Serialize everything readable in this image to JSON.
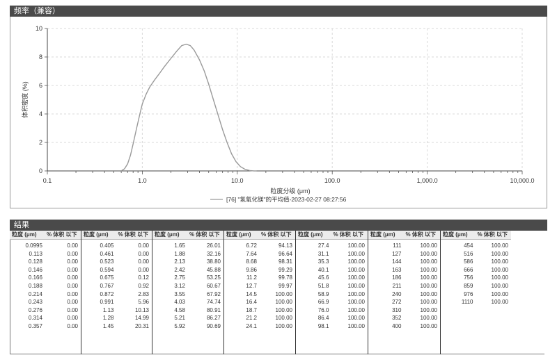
{
  "freq_panel": {
    "title": "频率（兼容）"
  },
  "results_panel": {
    "title": "结果"
  },
  "table": {
    "size_header": "粒度 (μm)",
    "vol_header": "% 体积 以下",
    "groups": [
      [
        [
          "0.0995",
          "0.00"
        ],
        [
          "0.113",
          "0.00"
        ],
        [
          "0.128",
          "0.00"
        ],
        [
          "0.146",
          "0.00"
        ],
        [
          "0.166",
          "0.00"
        ],
        [
          "0.188",
          "0.00"
        ],
        [
          "0.214",
          "0.00"
        ],
        [
          "0.243",
          "0.00"
        ],
        [
          "0.276",
          "0.00"
        ],
        [
          "0.314",
          "0.00"
        ],
        [
          "0.357",
          "0.00"
        ]
      ],
      [
        [
          "0.405",
          "0.00"
        ],
        [
          "0.461",
          "0.00"
        ],
        [
          "0.523",
          "0.00"
        ],
        [
          "0.594",
          "0.00"
        ],
        [
          "0.675",
          "0.12"
        ],
        [
          "0.767",
          "0.92"
        ],
        [
          "0.872",
          "2.83"
        ],
        [
          "0.991",
          "5.96"
        ],
        [
          "1.13",
          "10.13"
        ],
        [
          "1.28",
          "14.99"
        ],
        [
          "1.45",
          "20.31"
        ]
      ],
      [
        [
          "1.65",
          "26.01"
        ],
        [
          "1.88",
          "32.16"
        ],
        [
          "2.13",
          "38.80"
        ],
        [
          "2.42",
          "45.88"
        ],
        [
          "2.75",
          "53.25"
        ],
        [
          "3.12",
          "60.67"
        ],
        [
          "3.55",
          "67.92"
        ],
        [
          "4.03",
          "74.74"
        ],
        [
          "4.58",
          "80.91"
        ],
        [
          "5.21",
          "86.27"
        ],
        [
          "5.92",
          "90.69"
        ]
      ],
      [
        [
          "6.72",
          "94.13"
        ],
        [
          "7.64",
          "96.64"
        ],
        [
          "8.68",
          "98.31"
        ],
        [
          "9.86",
          "99.29"
        ],
        [
          "11.2",
          "99.78"
        ],
        [
          "12.7",
          "99.97"
        ],
        [
          "14.5",
          "100.00"
        ],
        [
          "16.4",
          "100.00"
        ],
        [
          "18.7",
          "100.00"
        ],
        [
          "21.2",
          "100.00"
        ],
        [
          "24.1",
          "100.00"
        ]
      ],
      [
        [
          "27.4",
          "100.00"
        ],
        [
          "31.1",
          "100.00"
        ],
        [
          "35.3",
          "100.00"
        ],
        [
          "40.1",
          "100.00"
        ],
        [
          "45.6",
          "100.00"
        ],
        [
          "51.8",
          "100.00"
        ],
        [
          "58.9",
          "100.00"
        ],
        [
          "66.9",
          "100.00"
        ],
        [
          "76.0",
          "100.00"
        ],
        [
          "86.4",
          "100.00"
        ],
        [
          "98.1",
          "100.00"
        ]
      ],
      [
        [
          "111",
          "100.00"
        ],
        [
          "127",
          "100.00"
        ],
        [
          "144",
          "100.00"
        ],
        [
          "163",
          "100.00"
        ],
        [
          "186",
          "100.00"
        ],
        [
          "211",
          "100.00"
        ],
        [
          "240",
          "100.00"
        ],
        [
          "272",
          "100.00"
        ],
        [
          "310",
          "100.00"
        ],
        [
          "352",
          "100.00"
        ],
        [
          "400",
          "100.00"
        ]
      ],
      [
        [
          "454",
          "100.00"
        ],
        [
          "516",
          "100.00"
        ],
        [
          "586",
          "100.00"
        ],
        [
          "666",
          "100.00"
        ],
        [
          "756",
          "100.00"
        ],
        [
          "859",
          "100.00"
        ],
        [
          "976",
          "100.00"
        ],
        [
          "1110",
          "100.00"
        ]
      ]
    ]
  },
  "chart_data": {
    "type": "line",
    "xscale": "log",
    "xlim": [
      0.1,
      10000
    ],
    "ylim": [
      0,
      10
    ],
    "xlabel": "粒度分级 (μm)",
    "ylabel": "体积密度 (%)",
    "x_ticks": [
      "0.1",
      "1.0",
      "10.0",
      "100.0",
      "1,000.0",
      "10,000.0"
    ],
    "y_ticks": [
      "0",
      "2",
      "4",
      "6",
      "8",
      "10"
    ],
    "grid": true,
    "legend": "bottom",
    "series": [
      {
        "name": "[76] \"氢氧化镁\"的平均值-2023-02-27 08:27:56",
        "color": "#9a9a9a",
        "x": [
          0.6,
          0.65,
          0.7,
          0.75,
          0.8,
          0.87,
          0.95,
          1.0,
          1.1,
          1.2,
          1.35,
          1.5,
          1.7,
          2.0,
          2.3,
          2.6,
          2.9,
          3.2,
          3.5,
          4.0,
          4.5,
          5.0,
          5.6,
          6.3,
          7.0,
          7.8,
          8.7,
          9.7,
          10.8,
          12.0,
          13.5,
          15.0,
          16.0
        ],
        "y": [
          0.0,
          0.15,
          0.5,
          1.1,
          1.9,
          3.0,
          4.1,
          4.7,
          5.4,
          5.9,
          6.4,
          6.8,
          7.3,
          7.9,
          8.4,
          8.8,
          8.9,
          8.8,
          8.5,
          7.8,
          7.0,
          6.1,
          5.0,
          3.9,
          2.9,
          2.0,
          1.2,
          0.65,
          0.3,
          0.12,
          0.03,
          0.0,
          0.0
        ]
      }
    ]
  }
}
